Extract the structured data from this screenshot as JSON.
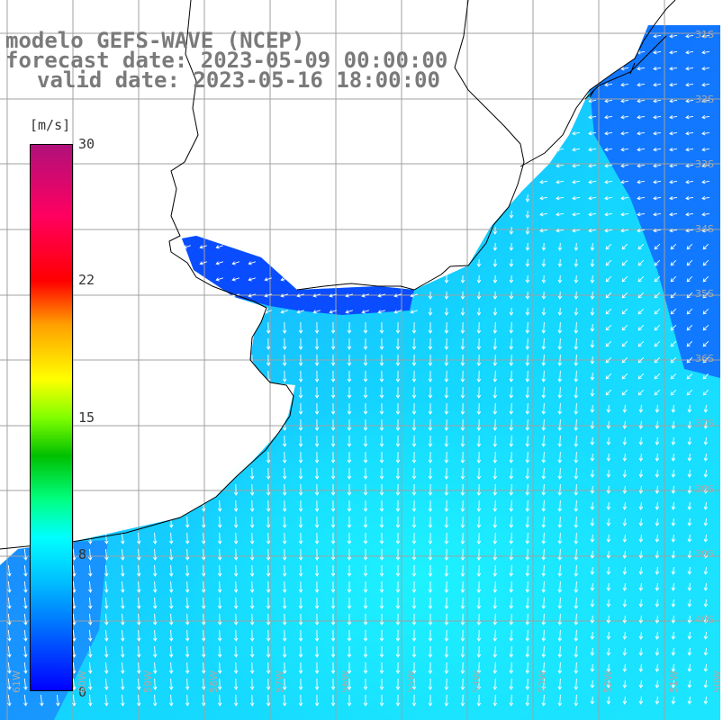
{
  "title": {
    "line1": "modelo GEFS-WAVE (NCEP)",
    "line2": "forecast date: 2023-05-09 00:00:00",
    "line3": "valid date: 2023-05-16 18:00:00"
  },
  "colorbar": {
    "unit": "[m/s]",
    "ticks": [
      "30",
      "22",
      "15",
      "8",
      "0"
    ]
  },
  "lat_labels": [
    "31S",
    "32S",
    "33S",
    "34S",
    "35S",
    "36S",
    "37S",
    "38S",
    "39S",
    "40S"
  ],
  "lon_labels": [
    "61W",
    "60W",
    "59W",
    "58W",
    "57W",
    "56W",
    "55W",
    "54W",
    "53W",
    "52W",
    "51W",
    "50W"
  ],
  "colors": {
    "land": "#ffffff",
    "ocean_light": "#0cf0ff",
    "ocean_mid": "#1aa0ff",
    "ocean_dark": "#0a4cff",
    "grid": "#a0a0a0",
    "coast": "#000000",
    "arrow": "#ffffff",
    "title": "#7a7a7a"
  }
}
